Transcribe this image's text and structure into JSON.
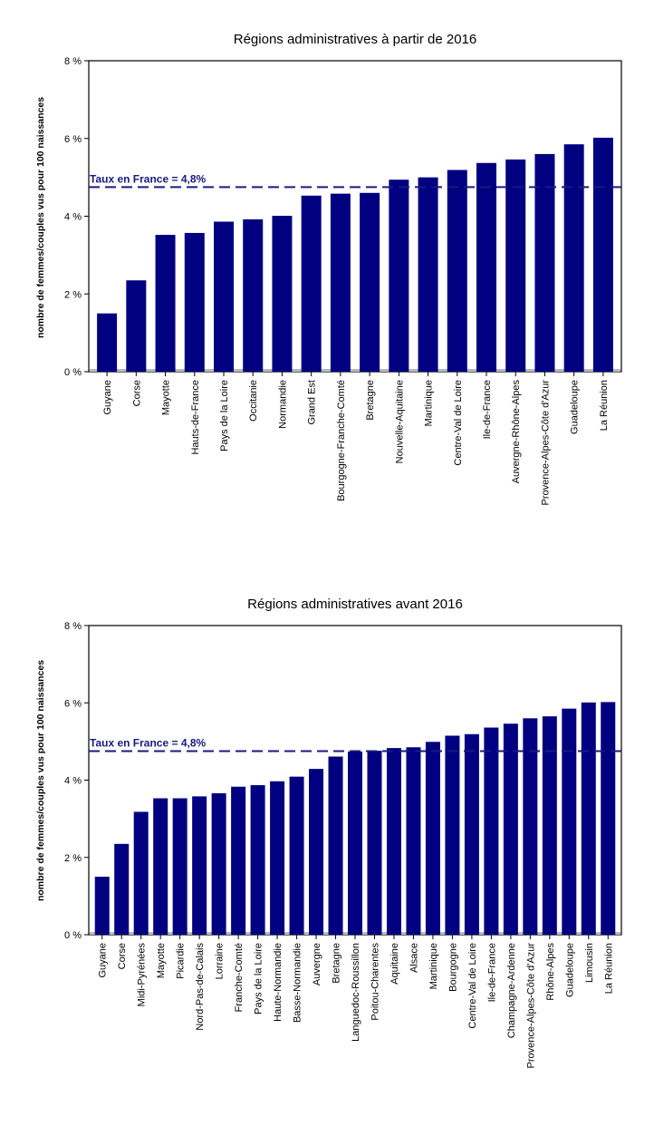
{
  "chart_data": [
    {
      "type": "bar",
      "title": "Régions administratives à partir de 2016",
      "xlabel": "",
      "ylabel": "nombre de femmes/couples vus pour 100 naissances",
      "ylim": [
        0,
        8
      ],
      "yticks": [
        "0 %",
        "2 %",
        "4 %",
        "6 %",
        "8 %"
      ],
      "grid": false,
      "bar_color": "#000080",
      "reference_line": {
        "label": "Taux en France = 4,8%",
        "value": 4.75,
        "color": "#1a1a80"
      },
      "categories": [
        "Guyane",
        "Corse",
        "Mayotte",
        "Hauts-de-France",
        "Pays de la Loire",
        "Occitanie",
        "Normandie",
        "Grand Est",
        "Bourgogne-Franche-Comté",
        "Bretagne",
        "Nouvelle-Aquitaine",
        "Martinique",
        "Centre-Val de Loire",
        "Ile-de-France",
        "Auvergne-Rhône-Alpes",
        "Provence-Alpes-Côte d'Azur",
        "Guadeloupe",
        "La Réunion"
      ],
      "values": [
        1.5,
        2.35,
        3.52,
        3.57,
        3.86,
        3.92,
        4.01,
        4.53,
        4.58,
        4.6,
        4.94,
        5.0,
        5.19,
        5.37,
        5.46,
        5.6,
        5.85,
        6.02
      ]
    },
    {
      "type": "bar",
      "title": "Régions administratives avant 2016",
      "xlabel": "",
      "ylabel": "nombre de femmes/couples vus pour 100 naissances",
      "ylim": [
        0,
        8
      ],
      "yticks": [
        "0 %",
        "2 %",
        "4 %",
        "6 %",
        "8 %"
      ],
      "grid": false,
      "bar_color": "#000080",
      "reference_line": {
        "label": "Taux en France = 4,8%",
        "value": 4.75,
        "color": "#1a1a80"
      },
      "categories": [
        "Guyane",
        "Corse",
        "Midi-Pyrénées",
        "Mayotte",
        "Picardie",
        "Nord-Pas-de-Calais",
        "Lorraine",
        "Franche-Comté",
        "Pays de la Loire",
        "Haute-Normandie",
        "Basse-Normandie",
        "Auvergne",
        "Bretagne",
        "Languedoc-Roussillon",
        "Poitou-Charentes",
        "Aquitaine",
        "Alsace",
        "Martinique",
        "Bourgogne",
        "Centre-Val de Loire",
        "Ile-de-France",
        "Champagne-Ardenne",
        "Provence-Alpes-Côte d'Azur",
        "Rhône-Alpes",
        "Guadeloupe",
        "Limousin",
        "La Réunion"
      ],
      "values": [
        1.5,
        2.35,
        3.18,
        3.53,
        3.53,
        3.58,
        3.66,
        3.83,
        3.87,
        3.97,
        4.09,
        4.29,
        4.61,
        4.74,
        4.76,
        4.83,
        4.85,
        4.99,
        5.15,
        5.19,
        5.36,
        5.46,
        5.6,
        5.65,
        5.85,
        6.01,
        6.02
      ]
    }
  ]
}
